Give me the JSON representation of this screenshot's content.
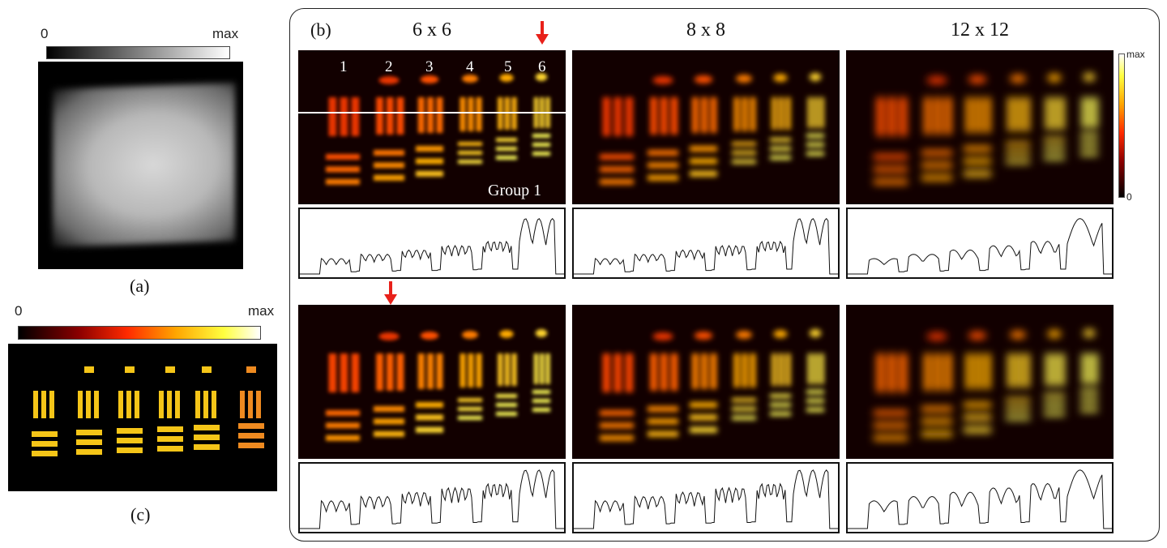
{
  "panel_a": {
    "caption": "(a)",
    "colorbar_min": "0",
    "colorbar_max": "max"
  },
  "panel_c": {
    "caption": "(c)",
    "colorbar_min": "0",
    "colorbar_max": "max"
  },
  "panel_b": {
    "caption": "(b)",
    "columns": [
      "6 x 6",
      "8 x 8",
      "12 x 12"
    ],
    "element_numbers": [
      "1",
      "2",
      "3",
      "4",
      "5",
      "6"
    ],
    "group_label": "Group 1",
    "colorbar_min": "0",
    "colorbar_max": "max",
    "colors": {
      "arrow": "#e8211a",
      "line": "#ffffff",
      "colormap": [
        "#000000",
        "#8b0000",
        "#ff2a00",
        "#ffa500",
        "#ffff40",
        "#ffffff"
      ]
    }
  }
}
